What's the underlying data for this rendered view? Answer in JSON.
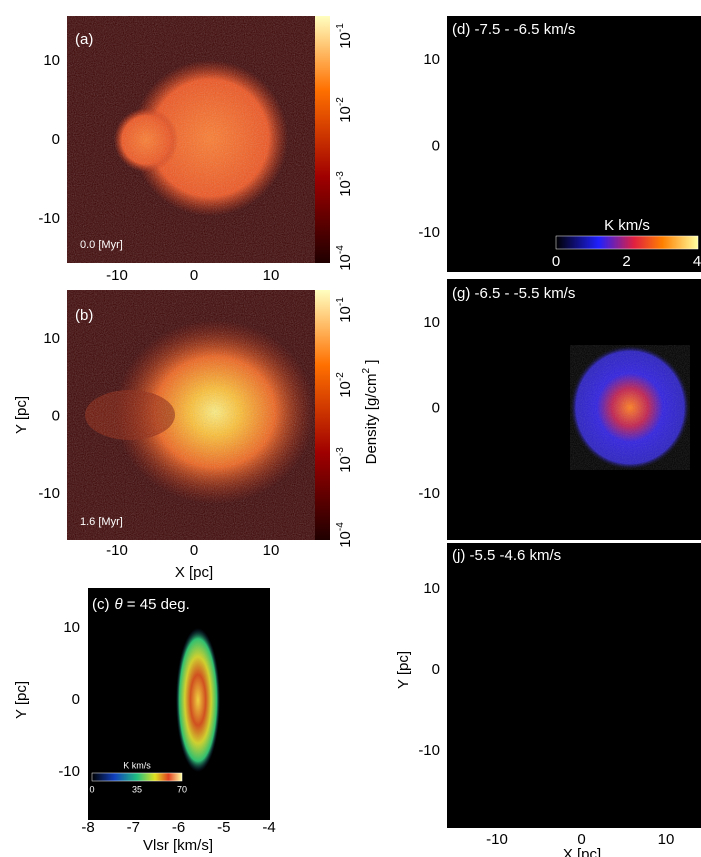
{
  "panel_a": {
    "label": "(a)",
    "note": "0.0 [Myr]",
    "xticks": [
      -10,
      0,
      10
    ],
    "yticks": [
      10,
      0,
      -10
    ],
    "colorbar_ticks": [
      {
        "base": "10",
        "exp": "-1"
      },
      {
        "base": "10",
        "exp": "-2"
      },
      {
        "base": "10",
        "exp": "-3"
      },
      {
        "base": "10",
        "exp": "-4"
      }
    ]
  },
  "panel_b": {
    "label": "(b)",
    "note": "1.6 [Myr]",
    "xticks": [
      -10,
      0,
      10
    ],
    "yticks": [
      10,
      0,
      -10
    ],
    "xlabel": "X [pc]",
    "ylabel": "Y [pc]",
    "colorbar_ticks": [
      {
        "base": "10",
        "exp": "-1"
      },
      {
        "base": "10",
        "exp": "-2"
      },
      {
        "base": "10",
        "exp": "-3"
      },
      {
        "base": "10",
        "exp": "-4"
      }
    ],
    "colorbar_label": {
      "text": "Density [g/cm",
      "exp": "2",
      "end": " ]"
    }
  },
  "panel_c": {
    "label": "(c)",
    "theta": "θ",
    "angle": " = 45 deg.",
    "xticks": [
      -8,
      -7,
      -6,
      -5,
      -4
    ],
    "yticks": [
      10,
      0,
      -10
    ],
    "xlabel": "Vlsr [km/s]",
    "ylabel": "Y [pc]",
    "colorbar_label": "K km/s",
    "colorbar_ticks": [
      0,
      35,
      70
    ]
  },
  "panel_d": {
    "label": "(d) -7.5 - -6.5 km/s",
    "yticks": [
      10,
      0,
      -10
    ],
    "colorbar_label": "K km/s",
    "colorbar_ticks": [
      0,
      2,
      4
    ]
  },
  "panel_g": {
    "label": "(g) -6.5 - -5.5 km/s",
    "yticks": [
      10,
      0,
      -10
    ]
  },
  "panel_j": {
    "label": "(j) -5.5 -4.6 km/s",
    "yticks": [
      10,
      0,
      -10
    ],
    "xticks": [
      -10,
      0,
      10
    ],
    "xlabel": "X [pc]",
    "ylabel": "Y [pc]"
  }
}
